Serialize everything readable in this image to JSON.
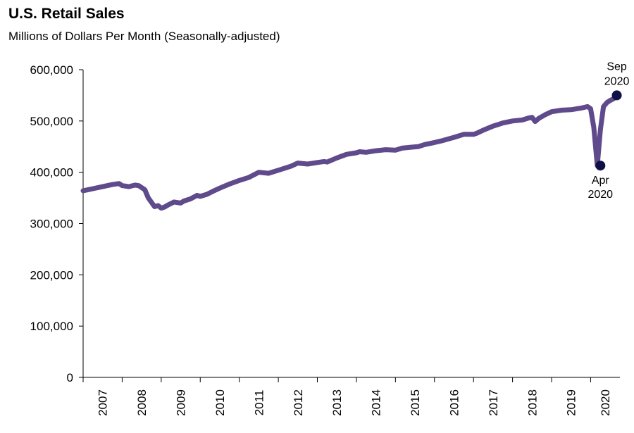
{
  "chart_data": {
    "type": "line",
    "title": "U.S. Retail Sales",
    "subtitle": "Millions of Dollars Per Month (Seasonally-adjusted)",
    "xlabel": "",
    "ylabel": "",
    "ylim": [
      0,
      600000
    ],
    "yticks": [
      0,
      100000,
      200000,
      300000,
      400000,
      500000,
      600000
    ],
    "ytick_labels": [
      "0",
      "100,000",
      "200,000",
      "300,000",
      "400,000",
      "500,000",
      "600,000"
    ],
    "xlim": [
      2007,
      2020.75
    ],
    "xtick_labels": [
      "2007",
      "2008",
      "2009",
      "2010",
      "2011",
      "2012",
      "2013",
      "2014",
      "2015",
      "2016",
      "2017",
      "2018",
      "2019",
      "2020"
    ],
    "grid": false,
    "series": [
      {
        "color": "#5f4a8b",
        "x": [
          2007.0,
          2007.25,
          2007.5,
          2007.75,
          2007.92,
          2008.0,
          2008.17,
          2008.33,
          2008.42,
          2008.58,
          2008.67,
          2008.83,
          2008.92,
          2009.0,
          2009.08,
          2009.17,
          2009.33,
          2009.5,
          2009.58,
          2009.75,
          2009.92,
          2010.0,
          2010.17,
          2010.33,
          2010.5,
          2010.75,
          2011.0,
          2011.25,
          2011.5,
          2011.75,
          2012.0,
          2012.17,
          2012.33,
          2012.5,
          2012.75,
          2013.0,
          2013.17,
          2013.25,
          2013.5,
          2013.75,
          2014.0,
          2014.08,
          2014.25,
          2014.5,
          2014.75,
          2015.0,
          2015.17,
          2015.42,
          2015.58,
          2015.75,
          2016.0,
          2016.17,
          2016.5,
          2016.75,
          2017.0,
          2017.08,
          2017.25,
          2017.5,
          2017.67,
          2017.75,
          2018.0,
          2018.25,
          2018.42,
          2018.5,
          2018.58,
          2018.67,
          2018.83,
          2019.0,
          2019.25,
          2019.5,
          2019.75,
          2019.92,
          2020.0,
          2020.08,
          2020.17,
          2020.25,
          2020.33,
          2020.42,
          2020.5,
          2020.58,
          2020.67
        ],
        "y": [
          364000,
          368000,
          372000,
          376000,
          378000,
          374000,
          372000,
          375000,
          374000,
          366000,
          350000,
          333000,
          335000,
          330000,
          332000,
          336000,
          342000,
          340000,
          344000,
          348000,
          355000,
          353000,
          357000,
          363000,
          369000,
          377000,
          384000,
          390000,
          400000,
          398000,
          404000,
          408000,
          412000,
          418000,
          416000,
          419000,
          421000,
          420000,
          428000,
          435000,
          438000,
          440000,
          439000,
          442000,
          444000,
          443000,
          447000,
          449000,
          450000,
          454000,
          458000,
          461000,
          468000,
          474000,
          474000,
          476000,
          482000,
          490000,
          494000,
          496000,
          500000,
          502000,
          506000,
          507000,
          499000,
          505000,
          512000,
          518000,
          521000,
          522000,
          525000,
          528000,
          524000,
          488000,
          413000,
          483000,
          528000,
          536000,
          540000,
          543000,
          550000
        ]
      }
    ],
    "annotations": [
      {
        "x": 2020.25,
        "y": 413000,
        "lines": [
          "Apr",
          "2020"
        ],
        "position": "below"
      },
      {
        "x": 2020.67,
        "y": 550000,
        "lines": [
          "Sep",
          "2020"
        ],
        "position": "above"
      }
    ],
    "marker_color": "#0f1046"
  }
}
